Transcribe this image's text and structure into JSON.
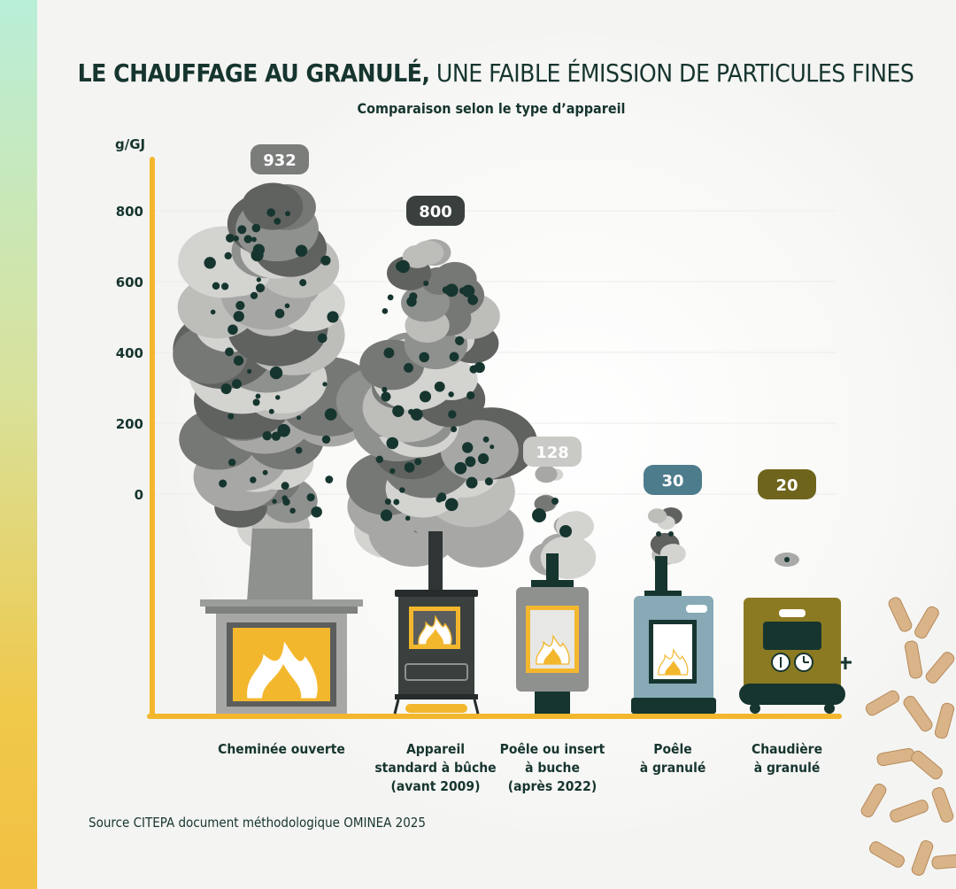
{
  "title": {
    "bold": "LE CHAUFFAGE AU GRANULÉ,",
    "regular": " UNE FAIBLE ÉMISSION DE PARTICULES FINES"
  },
  "subtitle": "Comparaison selon le type d’appareil",
  "source": "Source CITEPA document méthodologique OMINEA 2025",
  "colors": {
    "axis": "#f3b72e",
    "text": "#16352f",
    "smoke_light": "#c9c9c6",
    "smoke_dark": "#5c5f5d",
    "particle": "#16352f",
    "pellet_stove": "#87aab6",
    "pellet_boiler": "#8b7a22"
  },
  "chart_data": {
    "type": "bar",
    "unit_label": "g/GJ",
    "yticks": [
      0,
      200,
      400,
      600,
      800
    ],
    "categories": [
      [
        "Cheminée ouverte"
      ],
      [
        "Appareil",
        "standard à bûche",
        "(avant 2009)"
      ],
      [
        "Poêle ou insert",
        "à buche",
        "(après 2022)"
      ],
      [
        "Poêle",
        "à granulé"
      ],
      [
        "Chaudière",
        "à granulé"
      ]
    ],
    "values": [
      932,
      800,
      128,
      30,
      20
    ],
    "value_labels": [
      "932",
      "800",
      "128",
      "30",
      "20"
    ],
    "badge_colors": [
      "#7b7d7b",
      "#3a403e",
      "#c9c9c6",
      "#4d7c8c",
      "#6f641c"
    ],
    "device_icons": [
      "open-fireplace-icon",
      "log-stove-icon",
      "insert-stove-icon",
      "pellet-stove-icon",
      "pellet-boiler-icon"
    ],
    "grid": true
  }
}
